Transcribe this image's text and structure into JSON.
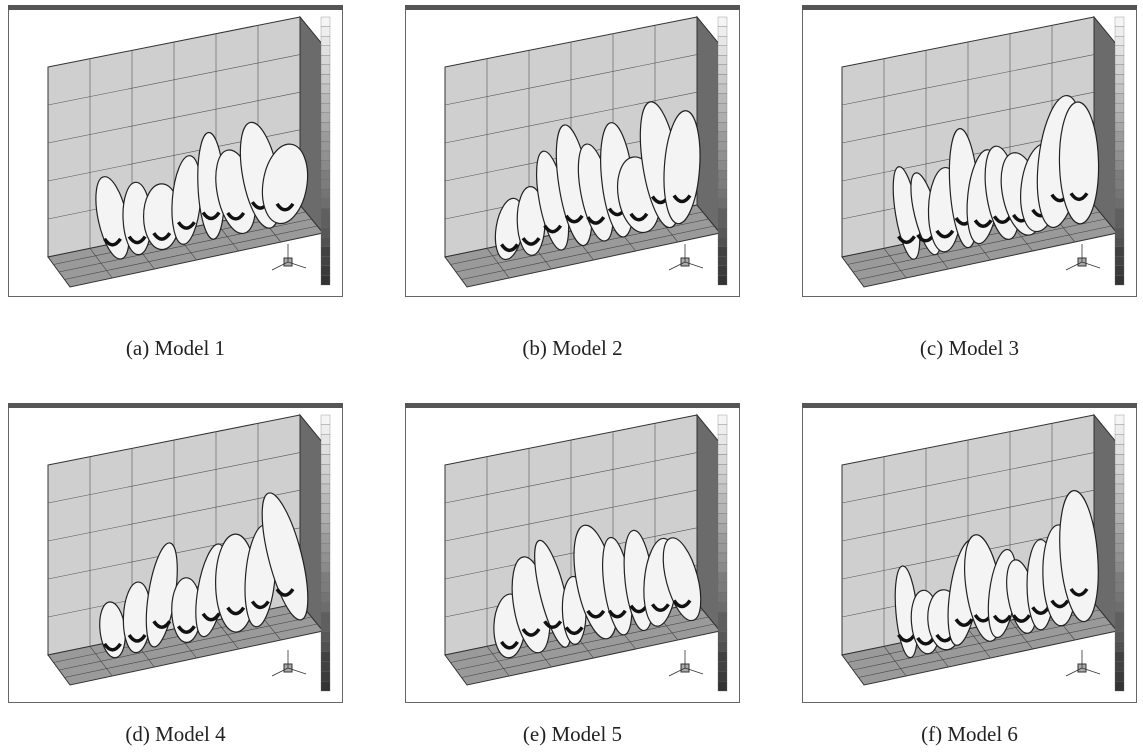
{
  "panels": [
    {
      "caption": "(a) Model 1"
    },
    {
      "caption": "(b) Model 2"
    },
    {
      "caption": "(c) Model 3"
    },
    {
      "caption": "(d) Model 4"
    },
    {
      "caption": "(e) Model 5"
    },
    {
      "caption": "(f) Model 6"
    }
  ]
}
